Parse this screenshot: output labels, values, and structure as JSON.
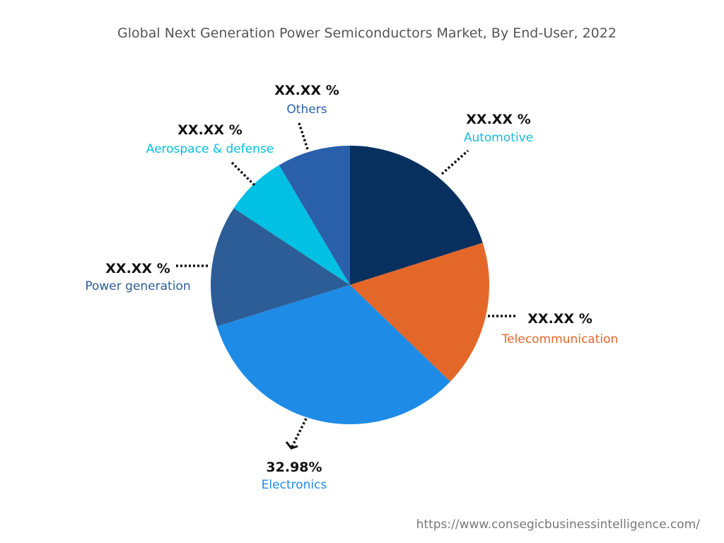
{
  "chart_data": {
    "type": "pie",
    "title": "Global Next Generation Power Semiconductors Market, By End-User, 2022",
    "start": "top",
    "direction": "clockwise",
    "slices": [
      {
        "name": "Automotive",
        "value": 20.1,
        "label": "XX.XX %",
        "color": "#07305f",
        "text_color": "#19bcd9"
      },
      {
        "name": "Telecommunication",
        "value": 17.1,
        "label": "XX.XX %",
        "color": "#e4672a",
        "text_color": "#e4672a"
      },
      {
        "name": "Electronics",
        "value": 32.98,
        "label": "32.98%",
        "color": "#1e8ce6",
        "text_color": "#1e8ce6"
      },
      {
        "name": "Power generation",
        "value": 14.1,
        "label": "XX.XX %",
        "color": "#2d5d96",
        "text_color": "#2d5d96"
      },
      {
        "name": "Aerospace & defense",
        "value": 7.2,
        "label": "XX.XX %",
        "color": "#00c0e3",
        "text_color": "#00c0e3"
      },
      {
        "name": "Others",
        "value": 8.5,
        "label": "XX.XX %",
        "color": "#2a5fa9",
        "text_color": "#2a5fa9"
      }
    ]
  },
  "footer": {
    "url": "https://www.consegicbusinessintelligence.com/"
  }
}
